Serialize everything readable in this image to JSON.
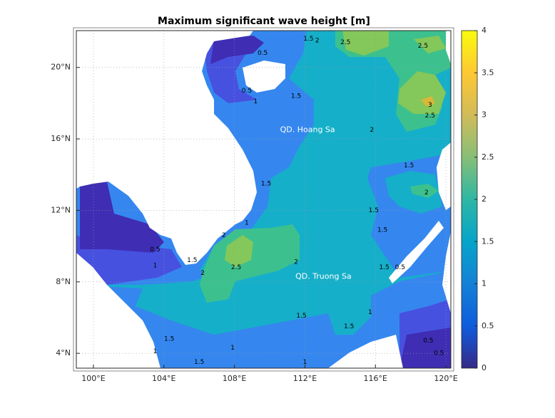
{
  "chart_data": {
    "type": "contour-map",
    "title": "Maximum significant wave height [m]",
    "xlim": [
      99.03,
      120.28
    ],
    "ylim": [
      3.17,
      22.06
    ],
    "xticks": [
      {
        "value": 100,
        "label": "100°E"
      },
      {
        "value": 104,
        "label": "104°E"
      },
      {
        "value": 108,
        "label": "108°E"
      },
      {
        "value": 112,
        "label": "112°E"
      },
      {
        "value": 116,
        "label": "116°E"
      },
      {
        "value": 120,
        "label": "120°E"
      }
    ],
    "yticks": [
      {
        "value": 4,
        "label": "4°N"
      },
      {
        "value": 8,
        "label": "8°N"
      },
      {
        "value": 12,
        "label": "12°N"
      },
      {
        "value": 16,
        "label": "16°N"
      },
      {
        "value": 20,
        "label": "20°N"
      }
    ],
    "grid": true,
    "colorbar": {
      "clim": [
        0,
        4
      ],
      "ticks": [
        0,
        0.5,
        1,
        1.5,
        2,
        2.5,
        3,
        3.5,
        4
      ],
      "colormap": [
        "#352a87",
        "#0f5cdd",
        "#1481d6",
        "#06a4ca",
        "#2eb7a4",
        "#87bf77",
        "#d1bb59",
        "#fec832",
        "#f9fb0e"
      ]
    },
    "annotations": [
      {
        "text": "QD. Hoang Sa",
        "lon": 112.15,
        "lat": 16.5
      },
      {
        "text": "QD. Truong Sa",
        "lon": 113.05,
        "lat": 8.3
      }
    ],
    "contour_labels": [
      {
        "value": 0.5,
        "lon": 109.6,
        "lat": 20.8
      },
      {
        "value": 1.5,
        "lon": 112.2,
        "lat": 21.6
      },
      {
        "value": 2,
        "lon": 112.7,
        "lat": 21.5
      },
      {
        "value": 2.5,
        "lon": 114.3,
        "lat": 21.4
      },
      {
        "value": 2.5,
        "lon": 118.7,
        "lat": 21.2
      },
      {
        "value": 0.5,
        "lon": 108.7,
        "lat": 18.7
      },
      {
        "value": 1,
        "lon": 109.2,
        "lat": 18.1
      },
      {
        "value": 1.5,
        "lon": 111.5,
        "lat": 18.4
      },
      {
        "value": 3,
        "lon": 119.1,
        "lat": 17.9
      },
      {
        "value": 2.5,
        "lon": 119.1,
        "lat": 17.3
      },
      {
        "value": 2,
        "lon": 115.8,
        "lat": 16.5
      },
      {
        "value": 1.5,
        "lon": 117.9,
        "lat": 14.5
      },
      {
        "value": 2,
        "lon": 118.9,
        "lat": 13.0
      },
      {
        "value": 1.5,
        "lon": 109.8,
        "lat": 13.5
      },
      {
        "value": 1.5,
        "lon": 115.9,
        "lat": 12.0
      },
      {
        "value": 1.5,
        "lon": 116.4,
        "lat": 10.9
      },
      {
        "value": 1,
        "lon": 108.7,
        "lat": 11.3
      },
      {
        "value": 0.5,
        "lon": 103.5,
        "lat": 9.8
      },
      {
        "value": 1,
        "lon": 103.5,
        "lat": 8.9
      },
      {
        "value": 2,
        "lon": 107.4,
        "lat": 10.6
      },
      {
        "value": 2,
        "lon": 106.2,
        "lat": 8.5
      },
      {
        "value": 2.5,
        "lon": 108.1,
        "lat": 8.8
      },
      {
        "value": 2,
        "lon": 111.5,
        "lat": 9.1
      },
      {
        "value": 1.5,
        "lon": 105.6,
        "lat": 9.2
      },
      {
        "value": 1.5,
        "lon": 116.5,
        "lat": 8.8
      },
      {
        "value": 0.5,
        "lon": 117.4,
        "lat": 8.8
      },
      {
        "value": 1.5,
        "lon": 111.8,
        "lat": 6.1
      },
      {
        "value": 1.5,
        "lon": 114.5,
        "lat": 5.5
      },
      {
        "value": 1,
        "lon": 115.7,
        "lat": 6.3
      },
      {
        "value": 1.5,
        "lon": 104.3,
        "lat": 4.8
      },
      {
        "value": 1,
        "lon": 103.5,
        "lat": 4.1
      },
      {
        "value": 1.5,
        "lon": 106.0,
        "lat": 3.5
      },
      {
        "value": 1,
        "lon": 107.9,
        "lat": 4.3
      },
      {
        "value": 1,
        "lon": 112.0,
        "lat": 3.5
      },
      {
        "value": 0.5,
        "lon": 119.0,
        "lat": 4.7
      },
      {
        "value": 0.5,
        "lon": 119.6,
        "lat": 4.0
      }
    ]
  }
}
